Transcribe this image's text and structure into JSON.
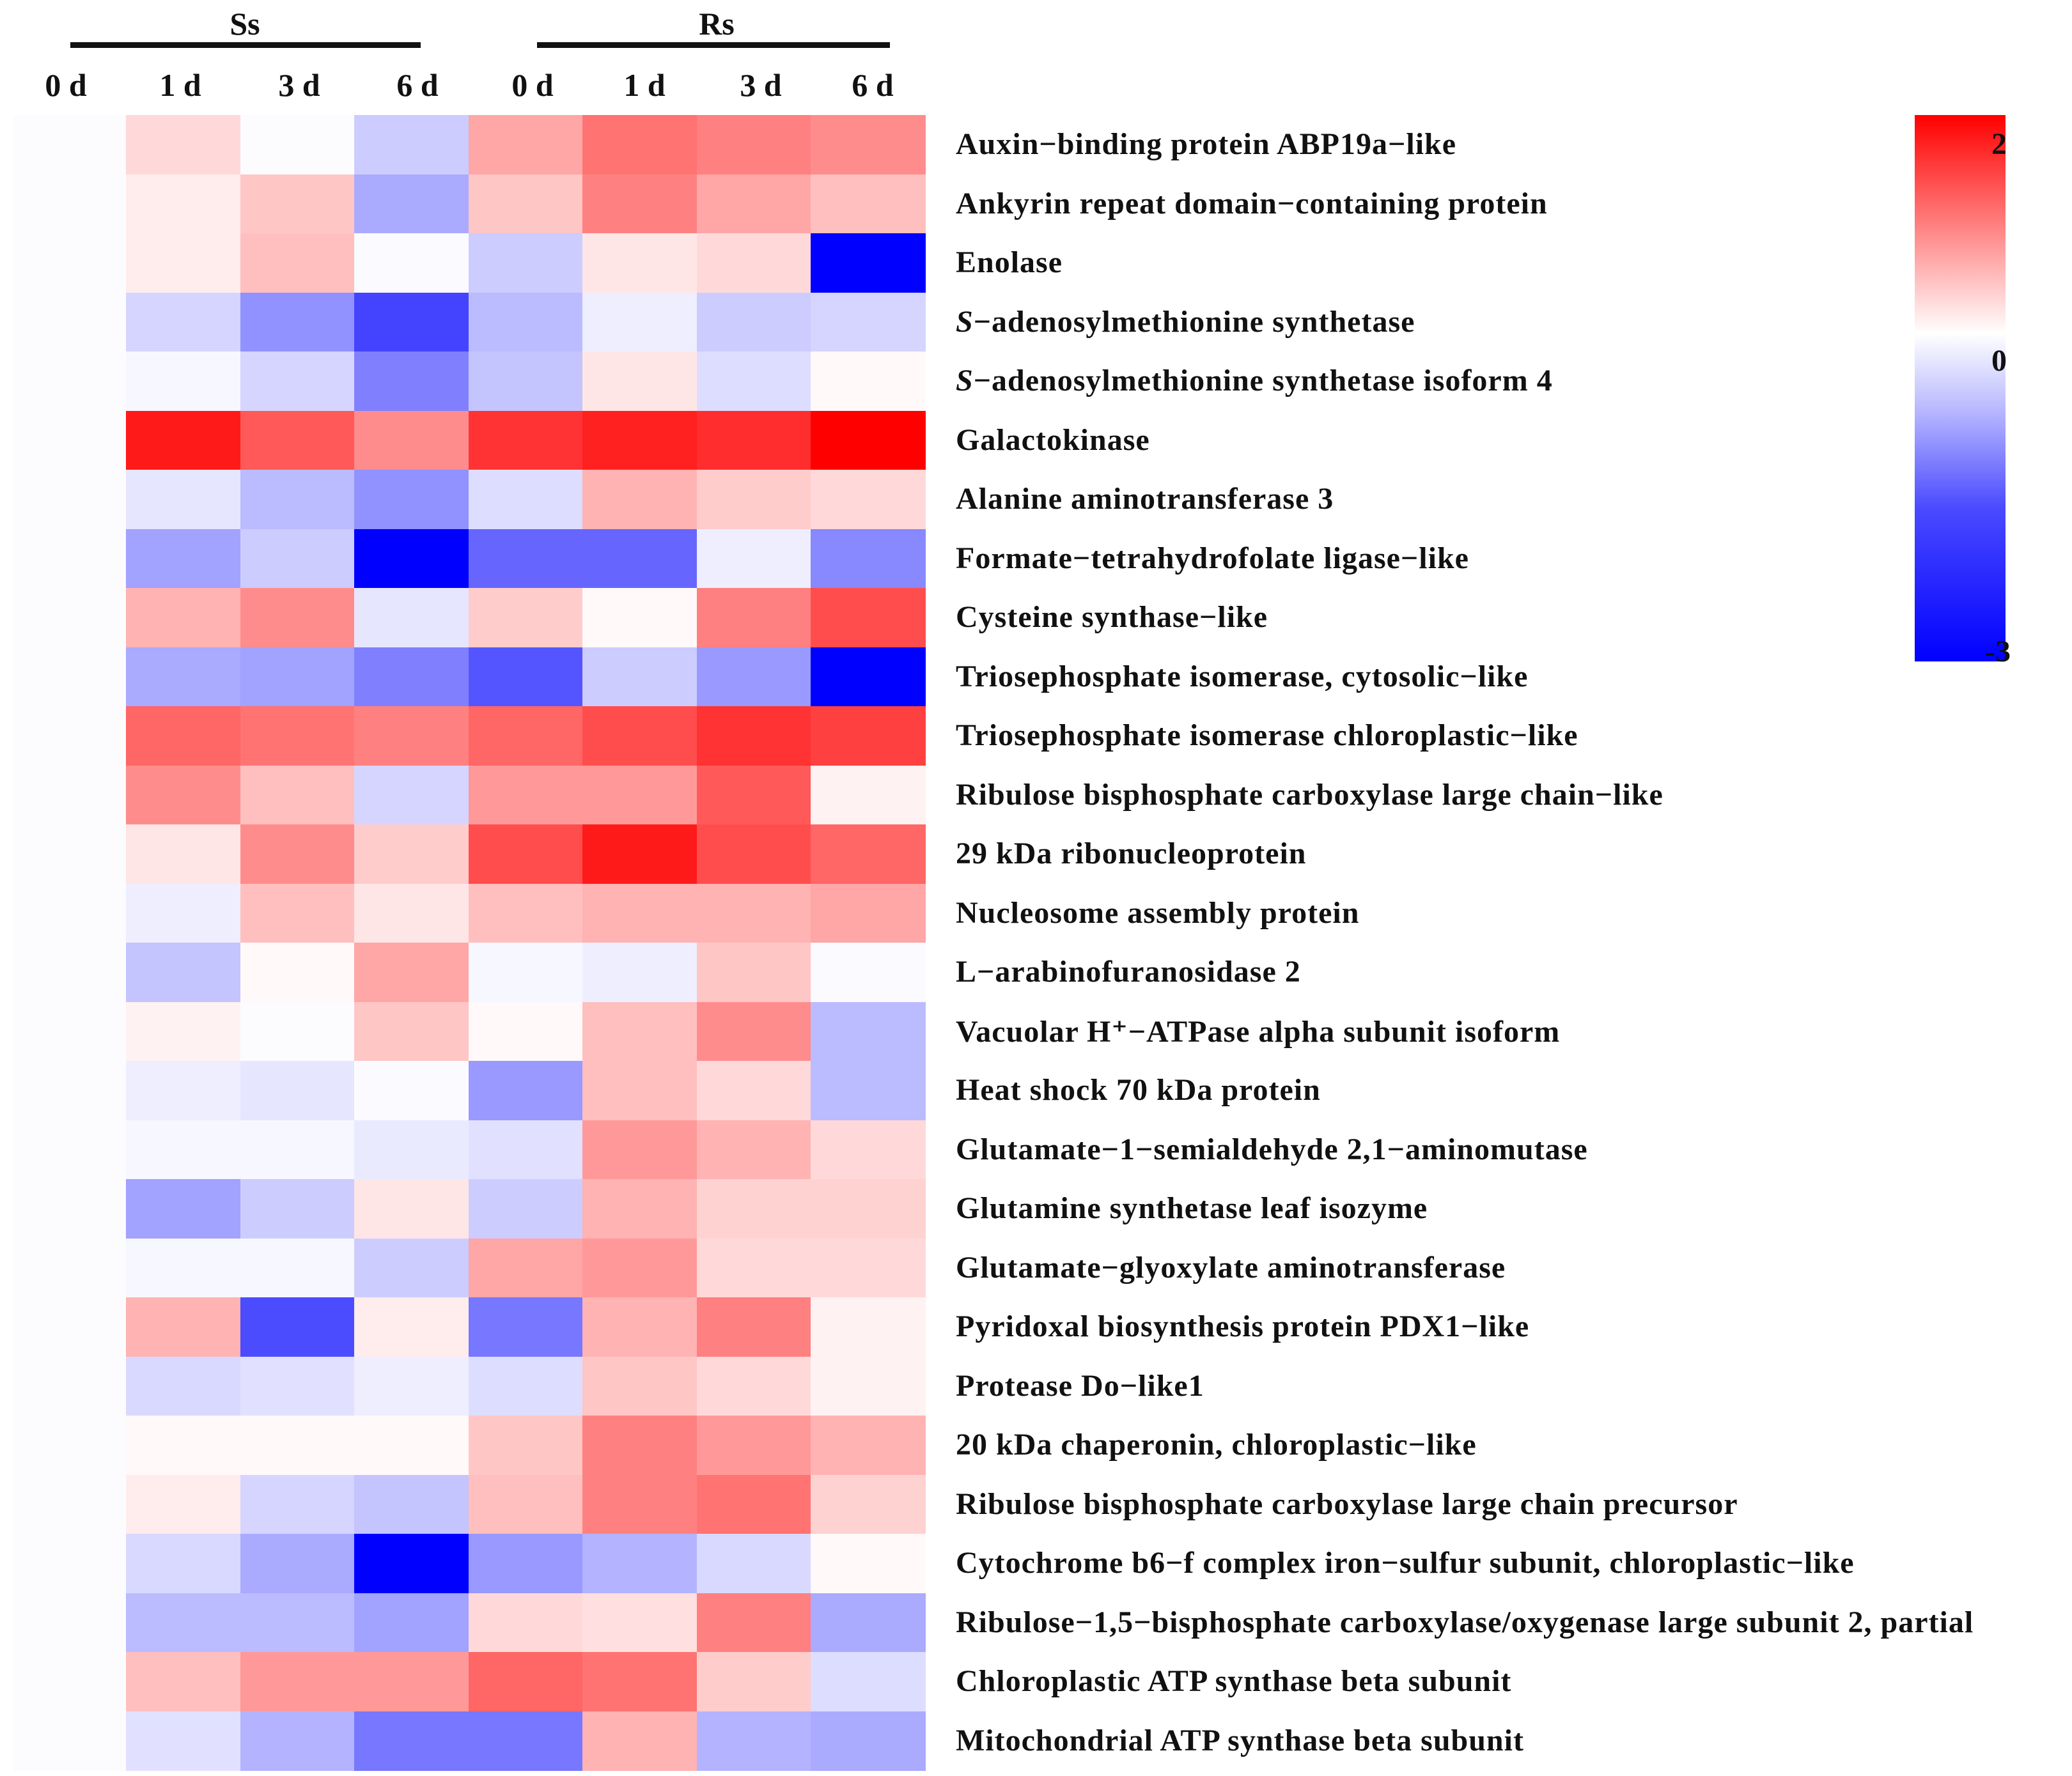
{
  "chart_data": {
    "type": "heatmap",
    "title": "",
    "groups": [
      {
        "name": "Ss",
        "columns": [
          "0 d",
          "1 d",
          "3 d",
          "6 d"
        ]
      },
      {
        "name": "Rs",
        "columns": [
          "0 d",
          "1 d",
          "3 d",
          "6 d"
        ]
      }
    ],
    "columns": [
      "0 d",
      "1 d",
      "3 d",
      "6 d",
      "0 d",
      "1 d",
      "3 d",
      "6 d"
    ],
    "rows": [
      "Auxin−binding protein ABP19a−like",
      "Ankyrin repeat domain−containing protein",
      "Enolase",
      "S−adenosylmethionine synthetase",
      "S−adenosylmethionine synthetase isoform 4",
      "Galactokinase",
      "Alanine aminotransferase 3",
      "Formate−tetrahydrofolate ligase−like",
      "Cysteine synthase−like",
      "Triosephosphate isomerase, cytosolic−like",
      "Triosephosphate isomerase chloroplastic−like",
      "Ribulose bisphosphate carboxylase large chain−like",
      "29 kDa ribonucleoprotein",
      "Nucleosome assembly protein",
      "L−arabinofuranosidase 2",
      "Vacuolar H⁺−ATPase alpha subunit isoform",
      "Heat shock 70 kDa protein",
      "Glutamate−1−semialdehyde 2,1−aminomutase",
      "Glutamine synthetase leaf isozyme",
      "Glutamate−glyoxylate aminotransferase",
      "Pyridoxal biosynthesis protein PDX1−like",
      "Protease Do−like1",
      "20 kDa chaperonin, chloroplastic−like",
      "Ribulose bisphosphate carboxylase large chain precursor",
      "Cytochrome b6−f complex iron−sulfur subunit, chloroplastic−like",
      "Ribulose−1,5−bisphosphate carboxylase/oxygenase large subunit 2, partial",
      "Chloroplastic ATP synthase beta subunit",
      "Mitochondrial ATP synthase beta subunit"
    ],
    "italic_prefix_rows": [
      3,
      4
    ],
    "values": [
      [
        0,
        0.3,
        0.0,
        -0.6,
        0.7,
        1.1,
        1.0,
        0.9
      ],
      [
        0,
        0.15,
        0.45,
        -1.0,
        0.45,
        1.0,
        0.7,
        0.5
      ],
      [
        0,
        0.15,
        0.5,
        -0.05,
        -0.6,
        0.2,
        0.3,
        -3.0
      ],
      [
        0,
        -0.5,
        -1.3,
        -2.2,
        -0.8,
        -0.2,
        -0.6,
        -0.5
      ],
      [
        0,
        -0.1,
        -0.5,
        -1.5,
        -0.7,
        0.2,
        -0.4,
        0.05
      ],
      [
        0,
        1.8,
        1.3,
        0.9,
        1.6,
        1.75,
        1.65,
        2.0
      ],
      [
        0,
        -0.3,
        -0.8,
        -1.3,
        -0.4,
        0.6,
        0.4,
        0.3
      ],
      [
        0,
        -1.1,
        -0.6,
        -3.0,
        -1.8,
        -1.8,
        -0.2,
        -1.4
      ],
      [
        0,
        0.6,
        0.9,
        -0.3,
        0.4,
        0.05,
        1.0,
        1.4
      ],
      [
        0,
        -1.0,
        -1.1,
        -1.5,
        -2.0,
        -0.6,
        -1.2,
        -3.0
      ],
      [
        0,
        1.2,
        1.1,
        1.0,
        1.2,
        1.4,
        1.6,
        1.5
      ],
      [
        0,
        0.9,
        0.5,
        -0.5,
        0.8,
        0.8,
        1.3,
        0.1
      ],
      [
        0,
        0.2,
        0.9,
        0.4,
        1.4,
        1.8,
        1.4,
        1.2
      ],
      [
        0,
        -0.2,
        0.5,
        0.2,
        0.5,
        0.6,
        0.6,
        0.7
      ],
      [
        0,
        -0.7,
        0.05,
        0.7,
        -0.1,
        -0.2,
        0.45,
        -0.05
      ],
      [
        0,
        0.1,
        0.0,
        0.45,
        0.05,
        0.5,
        0.9,
        -0.8
      ],
      [
        0,
        -0.2,
        -0.3,
        -0.05,
        -1.2,
        0.5,
        0.3,
        -0.8
      ],
      [
        0,
        -0.1,
        -0.1,
        -0.25,
        -0.35,
        0.8,
        0.6,
        0.3
      ],
      [
        0,
        -1.1,
        -0.6,
        0.2,
        -0.6,
        0.6,
        0.35,
        0.35
      ],
      [
        0,
        -0.1,
        -0.1,
        -0.6,
        0.7,
        0.8,
        0.3,
        0.3
      ],
      [
        0,
        0.6,
        -2.1,
        0.15,
        -1.6,
        0.6,
        1.0,
        0.1
      ],
      [
        0,
        -0.45,
        -0.35,
        -0.2,
        -0.4,
        0.45,
        0.3,
        0.1
      ],
      [
        0,
        0.05,
        0.05,
        0.05,
        0.45,
        1.0,
        0.8,
        0.6
      ],
      [
        0,
        0.15,
        -0.5,
        -0.7,
        0.5,
        1.0,
        1.1,
        0.35
      ],
      [
        0,
        -0.45,
        -1.0,
        -3.0,
        -1.2,
        -0.9,
        -0.45,
        0.05
      ],
      [
        0,
        -0.8,
        -0.8,
        -1.1,
        0.3,
        0.25,
        1.0,
        -1.0
      ],
      [
        0,
        0.5,
        0.8,
        0.8,
        1.2,
        1.1,
        0.4,
        -0.4
      ],
      [
        0,
        -0.35,
        -0.9,
        -1.6,
        -1.6,
        0.6,
        -0.9,
        -1.0
      ]
    ],
    "colorbar": {
      "ticks": [
        "2",
        "0",
        "-3"
      ],
      "min": -3,
      "max": 2,
      "colors": {
        "high": "#ff0000",
        "mid": "#ffffff",
        "low": "#0000ff"
      }
    },
    "xlabel": "",
    "ylabel": ""
  }
}
